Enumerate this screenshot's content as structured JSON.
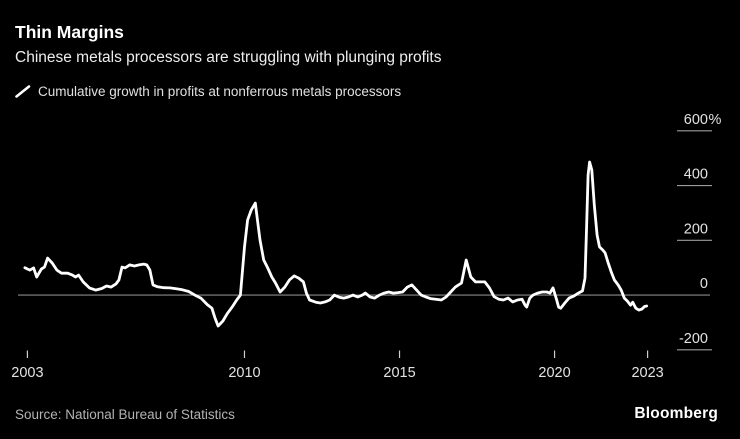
{
  "header": {
    "title": "Thin Margins",
    "subtitle": "Chinese metals processors are struggling with plunging profits"
  },
  "legend": {
    "label": "Cumulative growth in profits at nonferrous metals processors",
    "series_color": "#ffffff"
  },
  "footer": {
    "source": "Source: National Bureau of Statistics",
    "brand": "Bloomberg"
  },
  "colors": {
    "background": "#000000",
    "line": "#ffffff",
    "zero_line": "#8a8a8a",
    "tick_line": "#9c9c9c",
    "x_tick_line": "#cfcfcf",
    "axis_text": "#e3e3e3",
    "source_text": "#b3b3b3"
  },
  "chart_data": {
    "type": "line",
    "title": "Thin Margins",
    "series_name": "Cumulative growth in profits at nonferrous metals processors",
    "unit": "%",
    "grid": "zero-line-only",
    "legend_position": "top-left",
    "xlim": [
      2002.6,
      2023.4
    ],
    "ylim": [
      -219,
      676
    ],
    "xticks": [
      {
        "value": 2003,
        "label": "2003"
      },
      {
        "value": 2010,
        "label": "2010"
      },
      {
        "value": 2015,
        "label": "2015"
      },
      {
        "value": 2020,
        "label": "2020"
      },
      {
        "value": 2023,
        "label": "2023"
      }
    ],
    "yticks": [
      {
        "value": 600,
        "label": "600",
        "suffix": "%"
      },
      {
        "value": 400,
        "label": "400",
        "suffix": ""
      },
      {
        "value": 200,
        "label": "200",
        "suffix": ""
      },
      {
        "value": 0,
        "label": "0",
        "suffix": ""
      },
      {
        "value": -200,
        "label": "-200",
        "suffix": ""
      }
    ],
    "x": [
      2002.92,
      2003.0,
      2003.08,
      2003.2,
      2003.3,
      2003.45,
      2003.55,
      2003.65,
      2003.8,
      2003.95,
      2004.1,
      2004.3,
      2004.45,
      2004.55,
      2004.65,
      2004.8,
      2005.0,
      2005.2,
      2005.4,
      2005.55,
      2005.7,
      2005.85,
      2005.95,
      2006.05,
      2006.15,
      2006.3,
      2006.45,
      2006.6,
      2006.75,
      2006.85,
      2006.95,
      2007.05,
      2007.2,
      2007.4,
      2007.6,
      2007.8,
      2008.0,
      2008.2,
      2008.4,
      2008.6,
      2008.8,
      2008.95,
      2009.05,
      2009.15,
      2009.3,
      2009.45,
      2009.6,
      2009.75,
      2009.87,
      2010.0,
      2010.1,
      2010.22,
      2010.35,
      2010.5,
      2010.62,
      2010.75,
      2010.88,
      2011.0,
      2011.15,
      2011.3,
      2011.45,
      2011.6,
      2011.75,
      2011.9,
      2012.0,
      2012.1,
      2012.3,
      2012.45,
      2012.6,
      2012.75,
      2012.9,
      2013.05,
      2013.2,
      2013.35,
      2013.5,
      2013.65,
      2013.8,
      2013.9,
      2014.05,
      2014.2,
      2014.35,
      2014.5,
      2014.65,
      2014.8,
      2014.95,
      2015.1,
      2015.25,
      2015.4,
      2015.55,
      2015.7,
      2015.85,
      2016.0,
      2016.2,
      2016.35,
      2016.5,
      2016.65,
      2016.8,
      2017.0,
      2017.15,
      2017.3,
      2017.45,
      2017.6,
      2017.75,
      2017.9,
      2018.05,
      2018.2,
      2018.35,
      2018.5,
      2018.65,
      2018.8,
      2018.95,
      2019.05,
      2019.1,
      2019.2,
      2019.3,
      2019.45,
      2019.6,
      2019.75,
      2019.85,
      2019.95,
      2020.0,
      2020.07,
      2020.13,
      2020.2,
      2020.33,
      2020.47,
      2020.62,
      2020.77,
      2020.9,
      2020.98,
      2021.03,
      2021.08,
      2021.13,
      2021.2,
      2021.28,
      2021.37,
      2021.45,
      2021.55,
      2021.63,
      2021.73,
      2021.83,
      2021.93,
      2022.05,
      2022.15,
      2022.25,
      2022.35,
      2022.45,
      2022.52,
      2022.62,
      2022.72,
      2022.82,
      2022.9,
      2022.97
    ],
    "values": [
      100,
      95,
      91,
      99,
      66,
      95,
      102,
      135,
      117,
      91,
      80,
      80,
      73,
      66,
      73,
      48,
      26,
      18,
      24,
      33,
      29,
      40,
      55,
      102,
      99,
      110,
      106,
      110,
      113,
      110,
      91,
      37,
      30,
      27,
      26,
      23,
      19,
      13,
      0,
      -12,
      -35,
      -48,
      -84,
      -113,
      -95,
      -67,
      -44,
      -18,
      0,
      176,
      274,
      311,
      336,
      201,
      128,
      99,
      66,
      44,
      11,
      29,
      55,
      70,
      62,
      48,
      6,
      -18,
      -26,
      -29,
      -25,
      -18,
      0,
      -8,
      -11,
      -7,
      0,
      -7,
      0,
      7,
      -7,
      -11,
      0,
      7,
      11,
      7,
      9,
      11,
      29,
      37,
      18,
      0,
      -7,
      -13,
      -16,
      -18,
      -7,
      11,
      29,
      44,
      128,
      66,
      48,
      48,
      48,
      26,
      -6,
      -15,
      -18,
      -11,
      -25,
      -18,
      -15,
      -37,
      -44,
      -11,
      0,
      7,
      11,
      11,
      7,
      26,
      7,
      -18,
      -44,
      -48,
      -29,
      -11,
      -4,
      7,
      15,
      62,
      238,
      439,
      486,
      457,
      329,
      219,
      176,
      165,
      154,
      117,
      84,
      55,
      37,
      18,
      -11,
      -22,
      -37,
      -26,
      -48,
      -55,
      -51,
      -42,
      -40
    ]
  }
}
